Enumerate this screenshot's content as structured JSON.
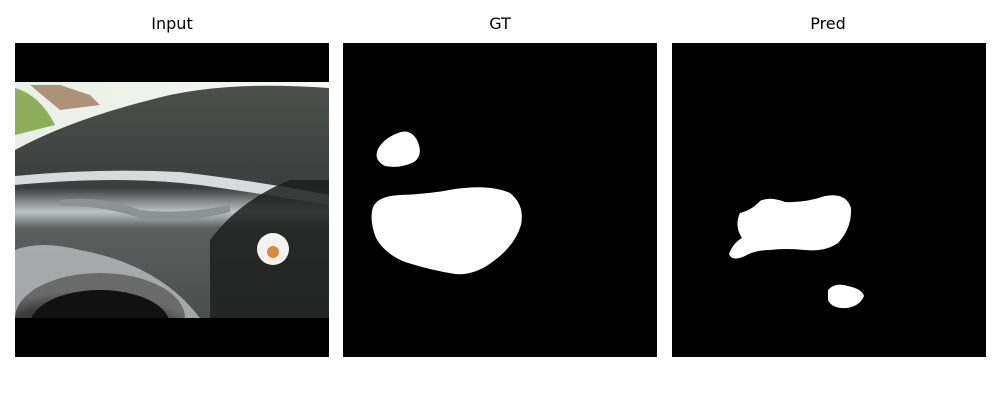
{
  "panels": [
    {
      "title": "Input"
    },
    {
      "title": "GT"
    },
    {
      "title": "Pred"
    }
  ]
}
